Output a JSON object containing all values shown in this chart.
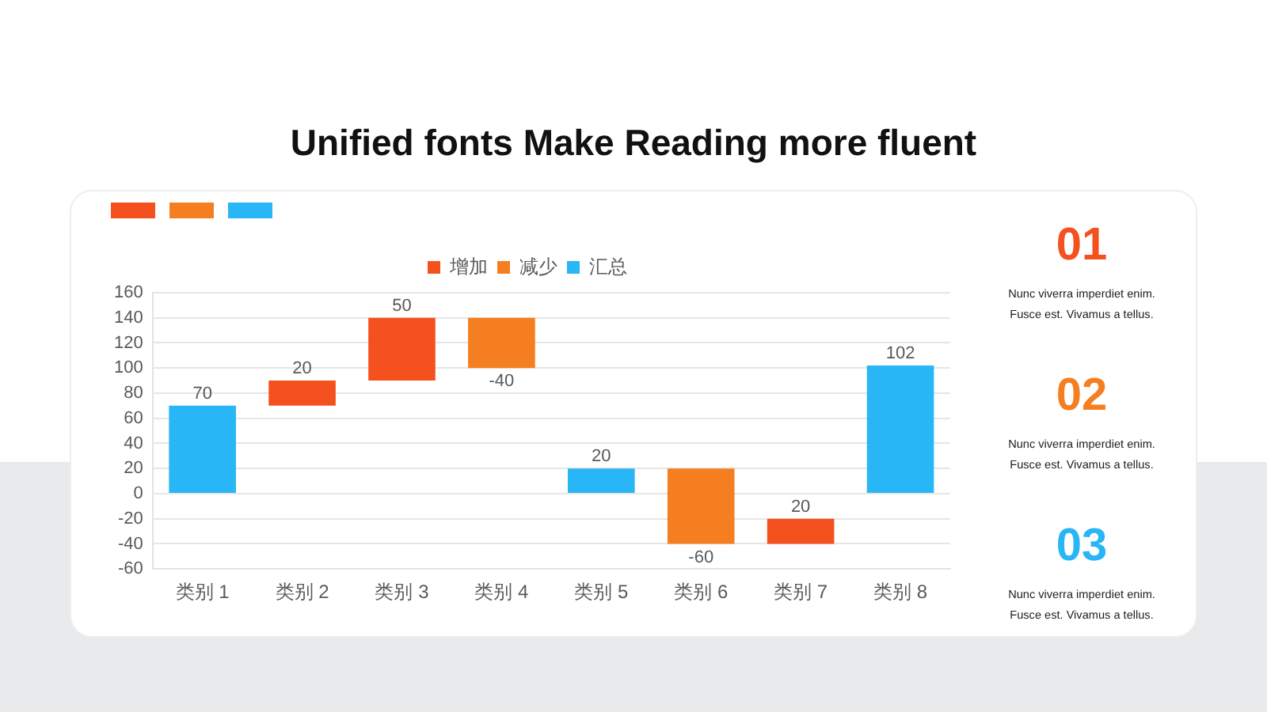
{
  "chart_data": {
    "type": "bar",
    "title": "Unified fonts Make Reading more fluent",
    "categories": [
      "类别 1",
      "类别 2",
      "类别 3",
      "类别 4",
      "类别 5",
      "类别 6",
      "类别 7",
      "类别 8"
    ],
    "series": [
      {
        "name": "增加",
        "color": "#f4511e",
        "values": [
          null,
          20,
          50,
          null,
          null,
          null,
          20,
          null
        ],
        "base": [
          null,
          70,
          90,
          null,
          null,
          null,
          -40,
          null
        ]
      },
      {
        "name": "减少",
        "color": "#f57f20",
        "values": [
          null,
          null,
          null,
          -40,
          null,
          -60,
          null,
          null
        ],
        "base": [
          null,
          null,
          null,
          140,
          null,
          20,
          null,
          null
        ]
      },
      {
        "name": "汇总",
        "color": "#29b6f6",
        "values": [
          70,
          null,
          null,
          null,
          20,
          null,
          null,
          102
        ]
      }
    ],
    "ylim": [
      -60,
      160
    ],
    "yticks": [
      -60,
      -40,
      -20,
      0,
      20,
      40,
      60,
      80,
      100,
      120,
      140,
      160
    ],
    "grid": "y",
    "legend": "top",
    "data_labels": true,
    "annotations": [
      "01",
      "Nunc viverra imperdiet enim. Fusce est. Vivamus a tellus.",
      "02",
      "Nunc viverra imperdiet enim. Fusce est. Vivamus a tellus.",
      "03",
      "Nunc viverra imperdiet enim. Fusce est. Vivamus a tellus."
    ]
  }
}
